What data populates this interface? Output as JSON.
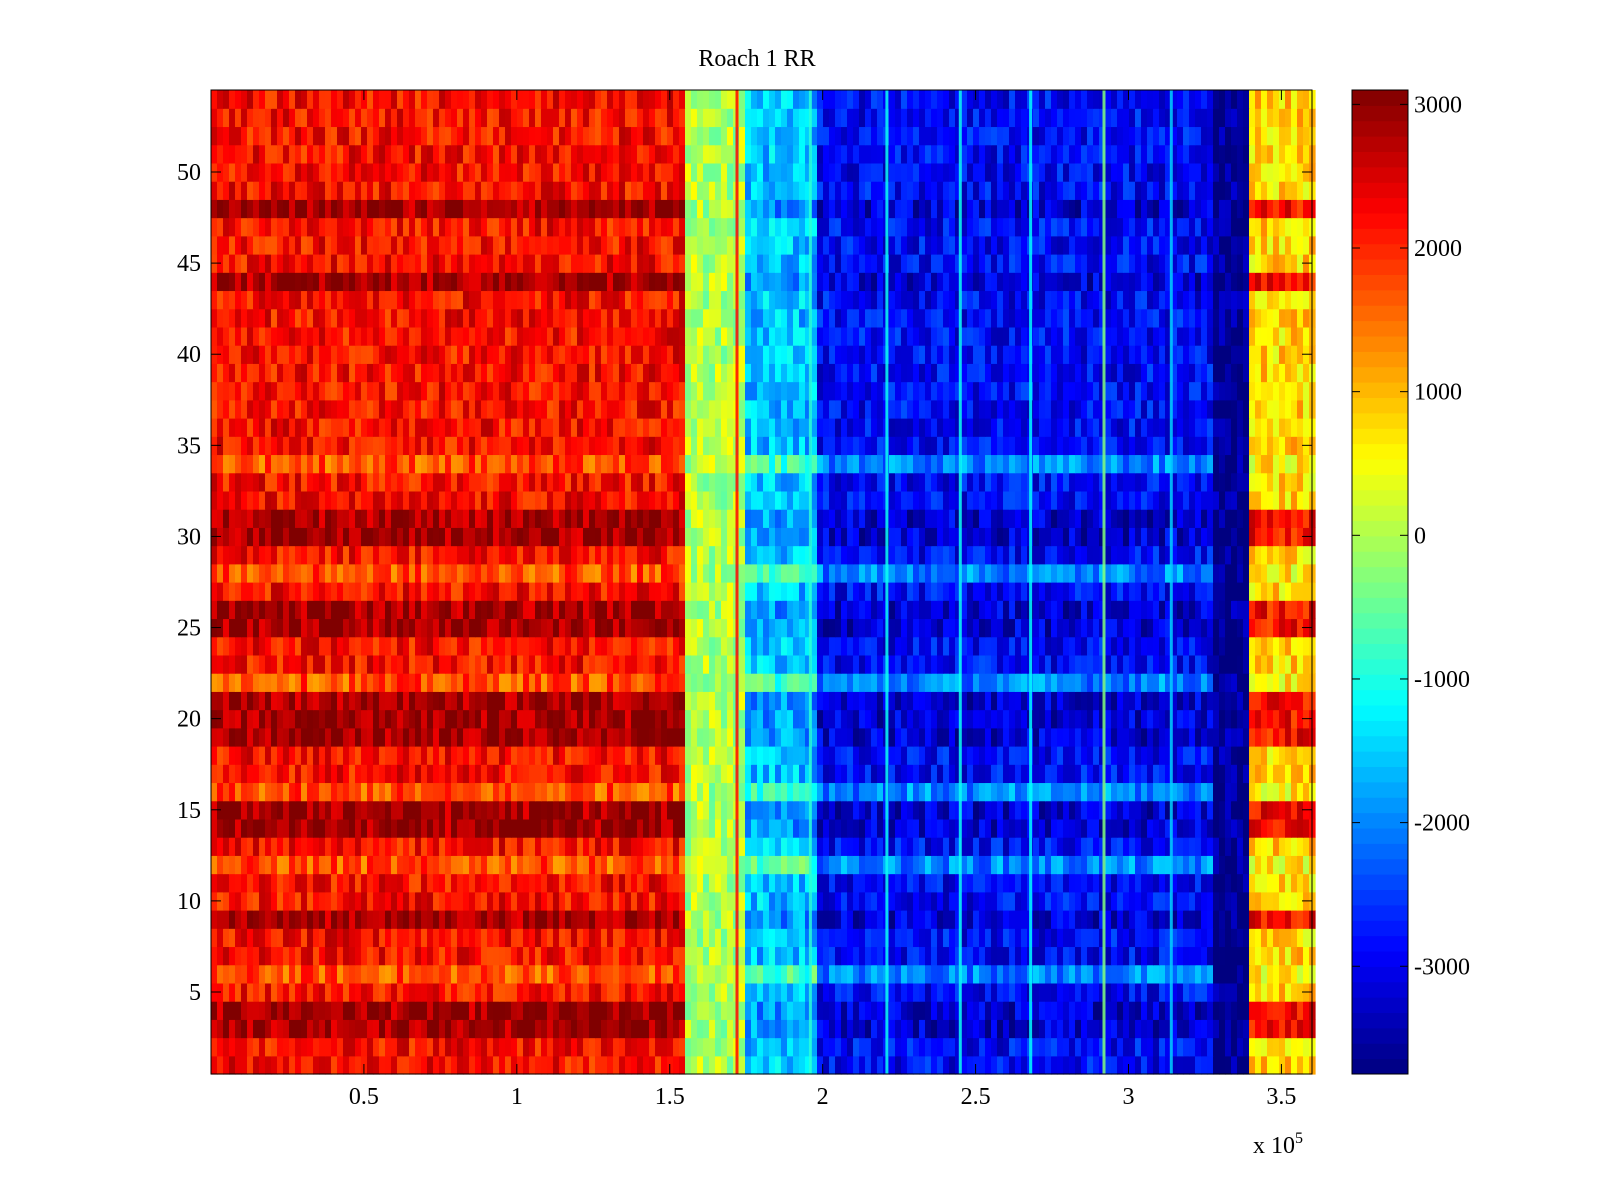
{
  "chart_data": {
    "type": "heatmap",
    "title": "Roach 1 RR",
    "xlabel": "",
    "ylabel": "",
    "x_exponent_label": {
      "base": "x 10",
      "exponent": "5"
    },
    "xlim": [
      0,
      360000
    ],
    "ylim": [
      0.5,
      54.5
    ],
    "x_ticks": [
      50000,
      100000,
      150000,
      200000,
      250000,
      300000,
      350000
    ],
    "x_tick_labels": [
      "0.5",
      "1",
      "1.5",
      "2",
      "2.5",
      "3",
      "3.5"
    ],
    "y_ticks": [
      5,
      10,
      15,
      20,
      25,
      30,
      35,
      40,
      45,
      50
    ],
    "y_tick_labels": [
      "5",
      "10",
      "15",
      "20",
      "25",
      "30",
      "35",
      "40",
      "45",
      "50"
    ],
    "rows": 54,
    "colormap": "jet",
    "clim": [
      -3750,
      3100
    ],
    "colorbar": {
      "ticks": [
        3000,
        2000,
        1000,
        0,
        -1000,
        -2000,
        -3000
      ],
      "tick_labels": [
        "3000",
        "2000",
        "1000",
        "0",
        "-1000",
        "-2000",
        "-3000"
      ]
    },
    "x_segments": [
      {
        "x": [
          0,
          155000
        ],
        "value": 2200,
        "description_level": "high"
      },
      {
        "x": [
          155000,
          175000
        ],
        "value": 0,
        "description_level": "transition"
      },
      {
        "x": [
          175000,
          198000
        ],
        "value": -1600,
        "description_level": "mid-low"
      },
      {
        "x": [
          198000,
          327000
        ],
        "value": -2900,
        "description_level": "low"
      },
      {
        "x": [
          327000,
          340000
        ],
        "value": -3700,
        "description_level": "lowest"
      },
      {
        "x": [
          340000,
          360000
        ],
        "value": 800,
        "description_level": "mid-high"
      }
    ],
    "vertical_lines": [
      {
        "x": 172000,
        "value": 2200
      },
      {
        "x": 196000,
        "value": -900
      },
      {
        "x": 221000,
        "value": -1100
      },
      {
        "x": 245000,
        "value": -1100
      },
      {
        "x": 268000,
        "value": -1200
      },
      {
        "x": 292000,
        "value": -300
      },
      {
        "x": 314000,
        "value": -1500
      }
    ],
    "hot_rows": [
      3,
      4,
      9,
      14,
      15,
      19,
      20,
      21,
      25,
      26,
      30,
      31,
      44,
      48
    ],
    "cool_rows": [
      6,
      12,
      16,
      22,
      28,
      34
    ]
  }
}
